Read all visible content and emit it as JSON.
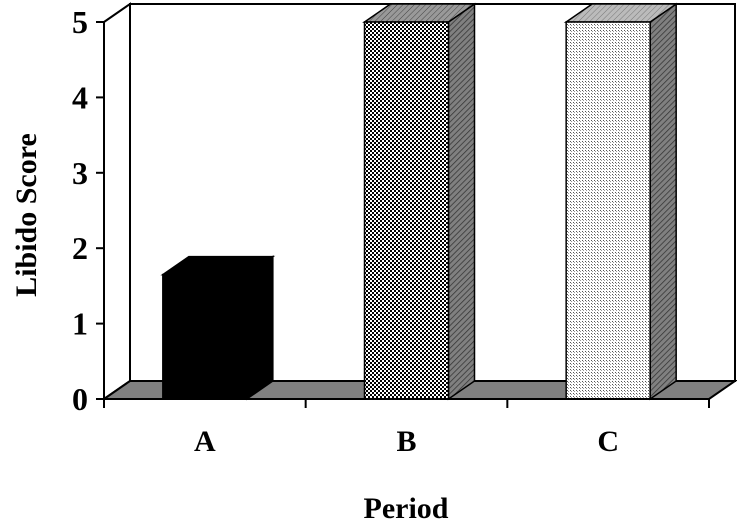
{
  "chart_data": {
    "type": "bar",
    "categories": [
      "A",
      "B",
      "C"
    ],
    "values": [
      1.65,
      5,
      5
    ],
    "xlabel": "Period",
    "ylabel": "Libido Score",
    "ylim": [
      0,
      5
    ],
    "yticks": [
      0,
      1,
      2,
      3,
      4,
      5
    ],
    "grid": false,
    "legend": "none",
    "three_d": true,
    "bar_fills": [
      "solid",
      "checkered",
      "fine-dots"
    ],
    "colors": {
      "bar_a": "#000000",
      "floor": "#808080",
      "side_dark": "#808080",
      "axis": "#000000",
      "background": "#ffffff"
    }
  }
}
